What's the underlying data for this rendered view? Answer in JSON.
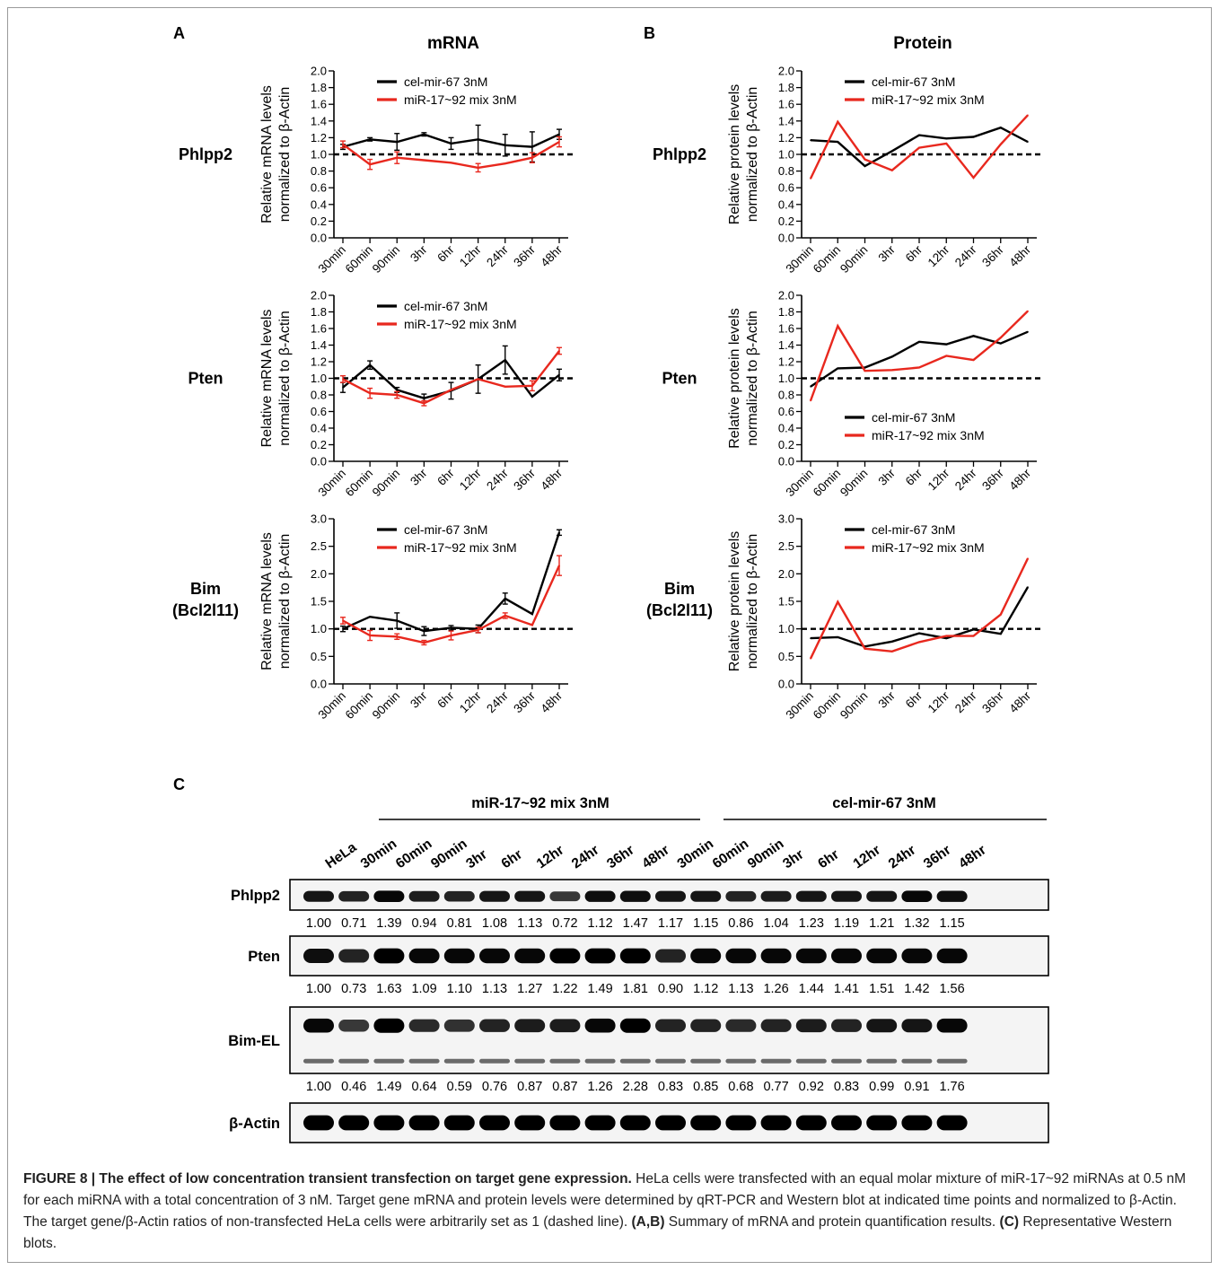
{
  "panels": {
    "A": "A",
    "B": "B",
    "C": "C"
  },
  "column_titles": {
    "mrna": "mRNA",
    "protein": "Protein"
  },
  "row_labels": [
    [
      "Phlpp2"
    ],
    [
      "Pten"
    ],
    [
      "Bim",
      "(Bcl2l11)"
    ]
  ],
  "ylabels": {
    "mrna": [
      "Relative mRNA levels",
      "normalized to β-Actin"
    ],
    "protein": [
      "Relative protein levels",
      "normalized to β-Actin"
    ]
  },
  "timepoints": [
    "30min",
    "60min",
    "90min",
    "3hr",
    "6hr",
    "12hr",
    "24hr",
    "36hr",
    "48hr"
  ],
  "legend": {
    "control": "cel-mir-67 3nM",
    "mix": "miR-17~92 mix 3nM"
  },
  "colors": {
    "control": "#000000",
    "mix": "#e8281e"
  },
  "chart_data": [
    {
      "id": "mrna-phlpp2",
      "type": "line",
      "ylim": [
        0,
        2.0
      ],
      "yticks": [
        "0.0",
        "0.2",
        "0.4",
        "0.6",
        "0.8",
        "1.0",
        "1.2",
        "1.4",
        "1.6",
        "1.8",
        "2.0"
      ],
      "baseline": 1.0,
      "legend_position": "top",
      "series": [
        {
          "name": "cel-mir-67 3nM",
          "values": [
            1.09,
            1.18,
            1.15,
            1.24,
            1.13,
            1.18,
            1.11,
            1.09,
            1.24
          ],
          "errors": [
            0.03,
            0.02,
            0.1,
            0.02,
            0.07,
            0.17,
            0.13,
            0.18,
            0.06
          ]
        },
        {
          "name": "miR-17~92 mix 3nM",
          "values": [
            1.12,
            0.88,
            0.96,
            0.93,
            0.9,
            0.84,
            0.89,
            0.96,
            1.15
          ],
          "errors": [
            0.04,
            0.06,
            0.07,
            0.0,
            0.0,
            0.05,
            0.0,
            0.06,
            0.06
          ]
        }
      ]
    },
    {
      "id": "mrna-pten",
      "type": "line",
      "ylim": [
        0,
        2.0
      ],
      "yticks": [
        "0.0",
        "0.2",
        "0.4",
        "0.6",
        "0.8",
        "1.0",
        "1.2",
        "1.4",
        "1.6",
        "1.8",
        "2.0"
      ],
      "baseline": 1.0,
      "legend_position": "top",
      "series": [
        {
          "name": "cel-mir-67 3nM",
          "values": [
            0.89,
            1.16,
            0.86,
            0.76,
            0.85,
            0.99,
            1.22,
            0.78,
            1.04
          ],
          "errors": [
            0.06,
            0.05,
            0.03,
            0.05,
            0.1,
            0.17,
            0.17,
            0.0,
            0.07
          ]
        },
        {
          "name": "miR-17~92 mix 3nM",
          "values": [
            0.99,
            0.82,
            0.8,
            0.7,
            0.86,
            0.99,
            0.9,
            0.91,
            1.33
          ],
          "errors": [
            0.04,
            0.06,
            0.04,
            0.03,
            0.0,
            0.0,
            0.0,
            0.06,
            0.04
          ]
        }
      ]
    },
    {
      "id": "mrna-bim",
      "type": "line",
      "ylim": [
        0,
        3.0
      ],
      "yticks": [
        "0.0",
        "0.5",
        "1.0",
        "1.5",
        "2.0",
        "2.5",
        "3.0"
      ],
      "baseline": 1.0,
      "legend_position": "top",
      "series": [
        {
          "name": "cel-mir-67 3nM",
          "values": [
            1.0,
            1.22,
            1.15,
            0.96,
            1.02,
            1.0,
            1.55,
            1.27,
            2.75
          ],
          "errors": [
            0.05,
            0.0,
            0.14,
            0.08,
            0.04,
            0.07,
            0.1,
            0.0,
            0.05
          ]
        },
        {
          "name": "miR-17~92 mix 3nM",
          "values": [
            1.15,
            0.88,
            0.86,
            0.75,
            0.88,
            0.98,
            1.24,
            1.07,
            2.15
          ],
          "errors": [
            0.06,
            0.09,
            0.05,
            0.04,
            0.08,
            0.05,
            0.05,
            0.0,
            0.18
          ]
        }
      ]
    },
    {
      "id": "protein-phlpp2",
      "type": "line",
      "ylim": [
        0,
        2.0
      ],
      "yticks": [
        "0.0",
        "0.2",
        "0.4",
        "0.6",
        "0.8",
        "1.0",
        "1.2",
        "1.4",
        "1.6",
        "1.8",
        "2.0"
      ],
      "baseline": 1.0,
      "legend_position": "top",
      "series": [
        {
          "name": "cel-mir-67 3nM",
          "values": [
            1.17,
            1.15,
            0.86,
            1.04,
            1.23,
            1.19,
            1.21,
            1.32,
            1.15
          ]
        },
        {
          "name": "miR-17~92 mix 3nM",
          "values": [
            0.71,
            1.39,
            0.94,
            0.81,
            1.08,
            1.13,
            0.72,
            1.12,
            1.47
          ]
        }
      ]
    },
    {
      "id": "protein-pten",
      "type": "line",
      "ylim": [
        0,
        2.0
      ],
      "yticks": [
        "0.0",
        "0.2",
        "0.4",
        "0.6",
        "0.8",
        "1.0",
        "1.2",
        "1.4",
        "1.6",
        "1.8",
        "2.0"
      ],
      "baseline": 1.0,
      "legend_position": "bottom",
      "series": [
        {
          "name": "cel-mir-67 3nM",
          "values": [
            0.9,
            1.12,
            1.13,
            1.26,
            1.44,
            1.41,
            1.51,
            1.42,
            1.56
          ]
        },
        {
          "name": "miR-17~92 mix 3nM",
          "values": [
            0.73,
            1.63,
            1.09,
            1.1,
            1.13,
            1.27,
            1.22,
            1.49,
            1.81
          ]
        }
      ]
    },
    {
      "id": "protein-bim",
      "type": "line",
      "ylim": [
        0,
        3.0
      ],
      "yticks": [
        "0.0",
        "0.5",
        "1.0",
        "1.5",
        "2.0",
        "2.5",
        "3.0"
      ],
      "baseline": 1.0,
      "legend_position": "top",
      "series": [
        {
          "name": "cel-mir-67 3nM",
          "values": [
            0.83,
            0.85,
            0.68,
            0.77,
            0.92,
            0.83,
            0.99,
            0.91,
            1.76
          ]
        },
        {
          "name": "miR-17~92 mix 3nM",
          "values": [
            0.46,
            1.49,
            0.64,
            0.59,
            0.76,
            0.87,
            0.87,
            1.26,
            2.28
          ]
        }
      ]
    }
  ],
  "blot": {
    "group_labels": {
      "mix": "miR-17~92 mix 3nM",
      "control": "cel-mir-67 3nM"
    },
    "lanes": [
      "HeLa",
      "30min",
      "60min",
      "90min",
      "3hr",
      "6hr",
      "12hr",
      "24hr",
      "36hr",
      "48hr",
      "30min",
      "60min",
      "90min",
      "3hr",
      "6hr",
      "12hr",
      "24hr",
      "36hr",
      "48hr"
    ],
    "rows": [
      {
        "label": "Phlpp2",
        "values": [
          "1.00",
          "0.71",
          "1.39",
          "0.94",
          "0.81",
          "1.08",
          "1.13",
          "0.72",
          "1.12",
          "1.47",
          "1.17",
          "1.15",
          "0.86",
          "1.04",
          "1.23",
          "1.19",
          "1.21",
          "1.32",
          "1.15"
        ]
      },
      {
        "label": "Pten",
        "values": [
          "1.00",
          "0.73",
          "1.63",
          "1.09",
          "1.10",
          "1.13",
          "1.27",
          "1.22",
          "1.49",
          "1.81",
          "0.90",
          "1.12",
          "1.13",
          "1.26",
          "1.44",
          "1.41",
          "1.51",
          "1.42",
          "1.56"
        ]
      },
      {
        "label": "Bim-EL",
        "values": [
          "1.00",
          "0.46",
          "1.49",
          "0.64",
          "0.59",
          "0.76",
          "0.87",
          "0.87",
          "1.26",
          "2.28",
          "0.83",
          "0.85",
          "0.68",
          "0.77",
          "0.92",
          "0.83",
          "0.99",
          "0.91",
          "1.76"
        ]
      },
      {
        "label": "β-Actin",
        "values": []
      }
    ]
  },
  "caption": {
    "label": "FIGURE 8 | The effect of low concentration transient transfection on target gene expression.",
    "body": " HeLa cells were transfected with an equal molar mixture of miR-17~92 miRNAs at 0.5 nM for each miRNA with a total concentration of 3 nM. Target gene mRNA and protein levels were determined by qRT-PCR and Western blot at indicated time points and normalized to β-Actin. The target gene/β-Actin ratios of non-transfected HeLa cells were arbitrarily set as 1 (dashed line). ",
    "ab_label": "(A,B)",
    "ab_text": " Summary of mRNA and protein quantification results. ",
    "c_label": "(C)",
    "c_text": " Representative Western blots."
  }
}
